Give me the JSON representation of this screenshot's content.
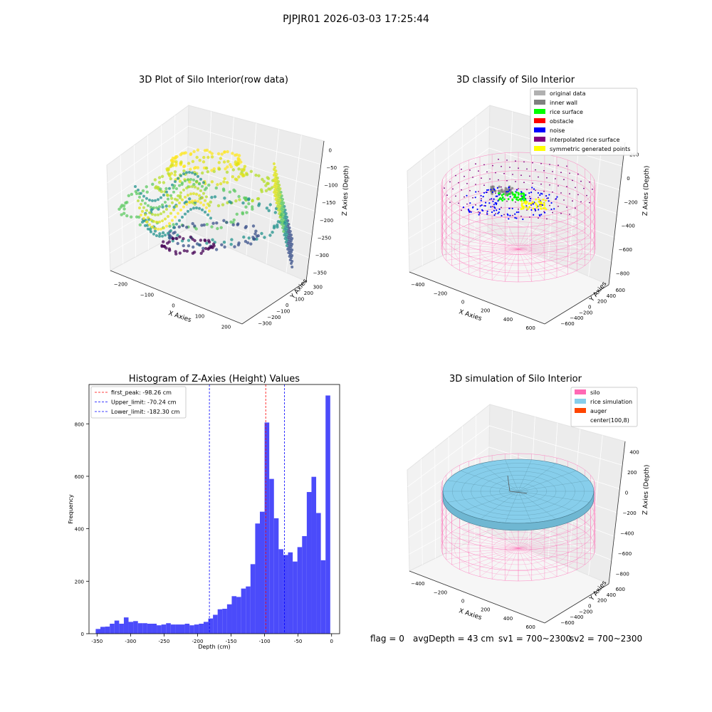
{
  "figure_title": "PJPJR01 2026-03-03 17:25:44",
  "status": {
    "flag": "flag = 0",
    "avg_depth": "avgDepth = 43 cm",
    "sv1": "sv1 = 700~2300",
    "sv2": "sv2 = 700~2300"
  },
  "colors": {
    "original": "#b0b0b0",
    "inner_wall": "#808080",
    "rice_surface": "#00ff00",
    "obstacle": "#ff0000",
    "noise": "#0000ff",
    "interpolated": "#800080",
    "symmetric": "#ffff00",
    "silo": "#ff69b4",
    "rice_sim": "#87ceeb",
    "auger": "#ff4500",
    "hist_bar": "#4b4bfa",
    "first_peak": "#ff0000",
    "limits": "#0000ff"
  },
  "chart_data": [
    {
      "type": "scatter",
      "title": "3D Plot of Silo Interior(row data)",
      "xlabel": "X Axies",
      "ylabel": "Y Axies",
      "zlabel": "Z Axies (Depth)",
      "x_ticks": [
        "−200",
        "−100",
        "0",
        "100",
        "200"
      ],
      "y_ticks": [
        "−300",
        "−200",
        "−100",
        "0",
        "100",
        "200",
        "300"
      ],
      "z_ticks": [
        "0",
        "−50",
        "−100",
        "−150",
        "−200",
        "−250",
        "−300",
        "−350"
      ],
      "colormap": "viridis"
    },
    {
      "type": "scatter",
      "title": "3D classify of Silo Interior",
      "xlabel": "X Axies",
      "ylabel": "Y Axies",
      "zlabel": "Z Axies (Depth)",
      "x_ticks": [
        "−400",
        "−200",
        "0",
        "200",
        "400",
        "600"
      ],
      "y_ticks": [
        "−600",
        "−400",
        "−200",
        "0",
        "200",
        "400",
        "600"
      ],
      "z_ticks": [
        "200",
        "0",
        "−200",
        "−400",
        "−600",
        "−800"
      ],
      "legend_position": "upper-right",
      "legend": [
        {
          "label": "original data",
          "color": "#b0b0b0"
        },
        {
          "label": "inner wall",
          "color": "#808080"
        },
        {
          "label": "rice surface",
          "color": "#00ff00"
        },
        {
          "label": "obstacle",
          "color": "#ff0000"
        },
        {
          "label": "noise",
          "color": "#0000ff"
        },
        {
          "label": "interpolated rice surface",
          "color": "#800080"
        },
        {
          "label": "symmetric generated points",
          "color": "#ffff00"
        }
      ]
    },
    {
      "type": "bar",
      "title": "Histogram of Z-Axies (Height) Values",
      "xlabel": "Depth (cm)",
      "ylabel": "Frequency",
      "xlim": [
        -362,
        12
      ],
      "ylim": [
        0,
        950
      ],
      "bin_width": 7,
      "bin_starts": [
        -352,
        -345,
        -338,
        -331,
        -324,
        -317,
        -310,
        -303,
        -296,
        -289,
        -282,
        -275,
        -268,
        -261,
        -254,
        -247,
        -240,
        -233,
        -226,
        -219,
        -212,
        -205,
        -198,
        -191,
        -184,
        -177,
        -170,
        -163,
        -156,
        -149,
        -142,
        -135,
        -128,
        -121,
        -114,
        -107,
        -100,
        -93,
        -86,
        -79,
        -72,
        -65,
        -58,
        -51,
        -44,
        -37,
        -30,
        -23,
        -16,
        -9
      ],
      "values": [
        18,
        26,
        27,
        38,
        50,
        38,
        62,
        45,
        48,
        40,
        40,
        38,
        38,
        32,
        35,
        40,
        35,
        35,
        35,
        38,
        32,
        35,
        38,
        45,
        58,
        72,
        93,
        95,
        112,
        143,
        140,
        172,
        180,
        265,
        420,
        465,
        805,
        590,
        440,
        322,
        300,
        310,
        275,
        330,
        372,
        540,
        598,
        460,
        280,
        908
      ],
      "x_ticks": [
        -350,
        -300,
        -250,
        -200,
        -150,
        -100,
        -50,
        0
      ],
      "y_ticks": [
        0,
        200,
        400,
        600,
        800
      ],
      "lines": [
        {
          "label": "first_peak: -98.26 cm",
          "x": -98.26,
          "color": "#ff0000"
        },
        {
          "label": "Upper_limit: -70.24 cm",
          "x": -70.24,
          "color": "#0000ff"
        },
        {
          "label": "Lower_limit: -182.30 cm",
          "x": -182.3,
          "color": "#0000ff"
        }
      ],
      "legend_position": "upper-left"
    },
    {
      "type": "scatter",
      "title": "3D simulation of Silo Interior",
      "xlabel": "X Axies",
      "ylabel": "Y Axies",
      "zlabel": "Z Axies (Depth)",
      "x_ticks": [
        "−400",
        "−200",
        "0",
        "200",
        "400",
        "600"
      ],
      "y_ticks": [
        "−600",
        "−400",
        "−200",
        "0",
        "200",
        "400",
        "600"
      ],
      "z_ticks": [
        "400",
        "200",
        "0",
        "−200",
        "−400",
        "−600",
        "−800"
      ],
      "legend_position": "upper-right",
      "legend": [
        {
          "label": "silo",
          "color": "#ff69b4"
        },
        {
          "label": "rice simulation",
          "color": "#87ceeb"
        },
        {
          "label": "auger",
          "color": "#ff4500"
        },
        {
          "label": "center(100,8)",
          "color": ""
        }
      ]
    }
  ]
}
